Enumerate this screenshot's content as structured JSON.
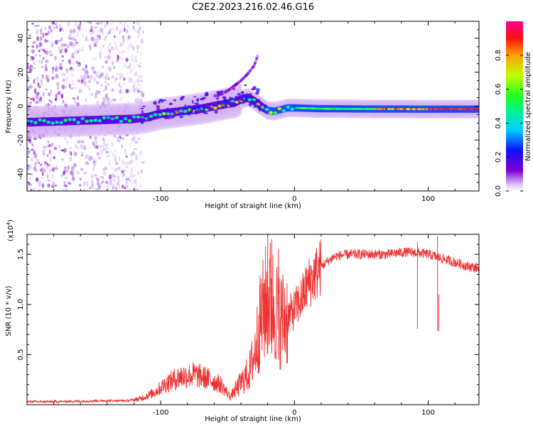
{
  "title": "C2E2.2023.216.02.46.G16",
  "chart_data": [
    {
      "type": "heatmap",
      "name": "spectrogram",
      "xlabel": "Height of straight line (km)",
      "ylabel": "Frequency (Hz)",
      "xlim": [
        -200,
        138
      ],
      "ylim": [
        -50,
        50
      ],
      "xticks": [
        -100,
        0,
        100
      ],
      "xtick_labels": [
        "-100",
        "0",
        "100"
      ],
      "yticks": [
        -40,
        -20,
        0,
        20,
        40
      ],
      "ytick_labels": [
        "-40",
        "-20",
        "0",
        "20",
        "40"
      ],
      "noise_region_x": [
        -200,
        -113
      ],
      "ridge": {
        "x": [
          -200,
          -180,
          -160,
          -140,
          -120,
          -110,
          -100,
          -90,
          -80,
          -70,
          -60,
          -50,
          -45,
          -40,
          -35,
          -30,
          -25,
          -20,
          -15,
          -10,
          -5,
          0,
          10,
          20,
          40,
          60,
          80,
          90,
          100,
          110,
          120,
          138
        ],
        "y": [
          -9.5,
          -9,
          -8.5,
          -8,
          -7.5,
          -6.5,
          -4.5,
          -3.5,
          -2.5,
          -1.5,
          0,
          1.5,
          2,
          4,
          5,
          3,
          0,
          -2.5,
          -3,
          -2,
          -1,
          -1,
          -1.3,
          -1.5,
          -1.6,
          -1.7,
          -1.7,
          -1.8,
          -1.8,
          -1.8,
          -1.8,
          -1.8
        ]
      },
      "secondary_branch": {
        "x": [
          -60,
          -55,
          -50,
          -45,
          -40,
          -35,
          -30,
          -27
        ],
        "y": [
          6,
          7,
          9,
          12,
          15,
          19,
          24,
          31
        ]
      },
      "colorbar": {
        "label": "Normalized spectral amplitude",
        "ticks": [
          0.0,
          0.2,
          0.4,
          0.6,
          0.8
        ],
        "tick_labels": [
          "0.0",
          "0.2",
          "0.4",
          "0.6",
          "0.8"
        ],
        "range": [
          0,
          1
        ],
        "colors": [
          "#ffffff",
          "#c8a8f0",
          "#8000d0",
          "#1010ff",
          "#00d8ff",
          "#00ff60",
          "#c0ff00",
          "#ffa000",
          "#ff0000",
          "#ff0080"
        ]
      }
    },
    {
      "type": "line",
      "name": "snr",
      "xlabel": "Height of straight line (km)",
      "ylabel": "SNR (10 * v/v)",
      "yscale_label": "(x10",
      "yscale_exp": "4",
      "xlim": [
        -200,
        138
      ],
      "ylim": [
        0,
        1.7
      ],
      "xticks": [
        -100,
        0,
        100
      ],
      "xtick_labels": [
        "-100",
        "0",
        "100"
      ],
      "yticks": [
        0.5,
        1.0,
        1.5
      ],
      "ytick_labels": [
        "0.5",
        "1.0",
        "1.5"
      ],
      "color": "#ee3333",
      "envelope": {
        "x": [
          -200,
          -180,
          -160,
          -140,
          -125,
          -115,
          -105,
          -95,
          -85,
          -75,
          -65,
          -55,
          -48,
          -42,
          -38,
          -34,
          -30,
          -26,
          -22,
          -18,
          -14,
          -10,
          -5,
          0,
          5,
          10,
          20,
          30,
          40,
          50,
          60,
          70,
          80,
          90,
          100,
          110,
          120,
          130,
          138
        ],
        "y": [
          0.03,
          0.03,
          0.035,
          0.04,
          0.04,
          0.06,
          0.12,
          0.22,
          0.28,
          0.3,
          0.26,
          0.2,
          0.08,
          0.18,
          0.25,
          0.32,
          0.5,
          0.8,
          1.0,
          1.05,
          0.95,
          0.85,
          0.88,
          0.95,
          1.05,
          1.2,
          1.38,
          1.48,
          1.5,
          1.5,
          1.5,
          1.5,
          1.52,
          1.52,
          1.5,
          1.46,
          1.42,
          1.38,
          1.36
        ]
      },
      "spikes": [
        {
          "x": -20,
          "y": 1.68
        },
        {
          "x": -17,
          "y": 1.65
        },
        {
          "x": -12,
          "y": 1.55
        },
        {
          "x": -26,
          "y": 1.2
        },
        {
          "x": 92,
          "y": 1.62
        },
        {
          "x": 107,
          "y": 1.68
        },
        {
          "x": 108,
          "y": 1.1
        }
      ]
    }
  ]
}
